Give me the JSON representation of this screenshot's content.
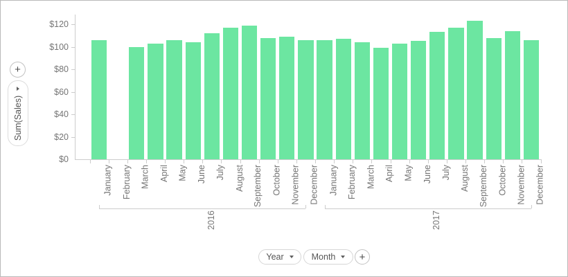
{
  "widget": {
    "add_value_button": "+",
    "value_axis_chip": "Sum(Sales)",
    "column_chips": [
      {
        "label": "Year"
      },
      {
        "label": "Month"
      }
    ],
    "add_column_button": "+"
  },
  "chart_data": {
    "type": "bar",
    "title": "",
    "xlabel": "",
    "ylabel": "Sum(Sales)",
    "y_ticks": [
      "$0",
      "$20",
      "$40",
      "$60",
      "$80",
      "$100",
      "$120"
    ],
    "ylim": [
      0,
      130
    ],
    "grid": false,
    "legend": "none",
    "bar_color": "#6ce6a1",
    "axis_color": "#cccccc",
    "label_color": "#757575",
    "groups": [
      {
        "label": "2016",
        "categories": [
          "January",
          "February",
          "March",
          "April",
          "May",
          "June",
          "July",
          "August",
          "September",
          "October",
          "November",
          "December"
        ],
        "values": [
          106,
          null,
          100,
          103,
          106,
          104,
          112,
          117,
          119,
          108,
          109,
          106
        ]
      },
      {
        "label": "2017",
        "categories": [
          "January",
          "February",
          "March",
          "April",
          "May",
          "June",
          "July",
          "August",
          "September",
          "October",
          "November",
          "December"
        ],
        "values": [
          106,
          107,
          104,
          99,
          103,
          105,
          113,
          117,
          123,
          108,
          114,
          106
        ]
      }
    ]
  }
}
